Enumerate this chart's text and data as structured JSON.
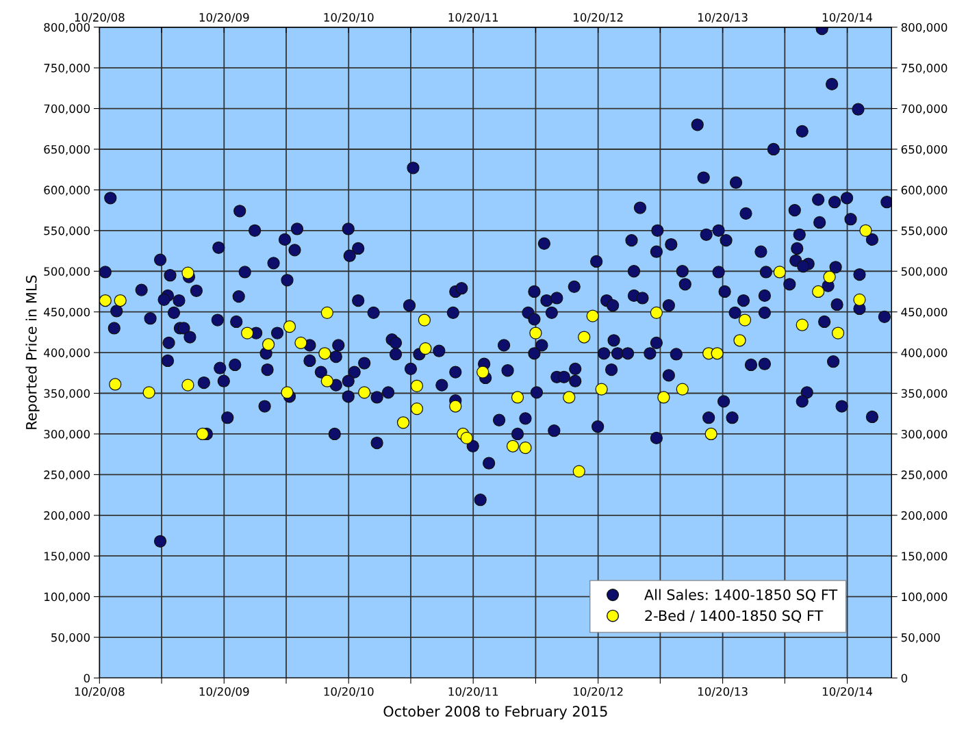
{
  "chart_data": {
    "type": "scatter",
    "xlabel": "October 2008 to February 2015",
    "ylabel": "Reported Price in MLS",
    "xlim": [
      "2008-10-20",
      "2015-02-27"
    ],
    "ylim": [
      0,
      800000
    ],
    "xticks": [
      {
        "value": "2008-10-20",
        "label": "10/20/08"
      },
      {
        "value": "2009-04-20",
        "label": null
      },
      {
        "value": "2009-10-20",
        "label": "10/20/09"
      },
      {
        "value": "2010-04-20",
        "label": null
      },
      {
        "value": "2010-10-20",
        "label": "10/20/10"
      },
      {
        "value": "2011-04-20",
        "label": null
      },
      {
        "value": "2011-10-20",
        "label": "10/20/11"
      },
      {
        "value": "2012-04-20",
        "label": null
      },
      {
        "value": "2012-10-20",
        "label": "10/20/12"
      },
      {
        "value": "2013-04-20",
        "label": null
      },
      {
        "value": "2013-10-20",
        "label": "10/20/13"
      },
      {
        "value": "2014-04-20",
        "label": null
      },
      {
        "value": "2014-10-20",
        "label": "10/20/14"
      }
    ],
    "x2lim": [
      "2008-10-20",
      "2015-02-27"
    ],
    "x2ticks": [
      {
        "value": "2008-10-20",
        "label": "10/20/08"
      },
      {
        "value": "2009-04-20",
        "label": null
      },
      {
        "value": "2009-10-20",
        "label": "10/20/09"
      },
      {
        "value": "2010-04-20",
        "label": null
      },
      {
        "value": "2010-10-20",
        "label": "10/20/10"
      },
      {
        "value": "2011-04-20",
        "label": null
      },
      {
        "value": "2011-10-20",
        "label": "10/20/11"
      },
      {
        "value": "2012-04-20",
        "label": null
      },
      {
        "value": "2012-10-20",
        "label": "10/20/12"
      },
      {
        "value": "2013-04-20",
        "label": null
      },
      {
        "value": "2013-10-20",
        "label": "10/20/13"
      },
      {
        "value": "2014-04-20",
        "label": null
      },
      {
        "value": "2014-10-20",
        "label": "10/20/14"
      }
    ],
    "yticks": [
      0,
      {
        "value": 50000,
        "label": "50,000"
      },
      {
        "value": 100000,
        "label": "100,000"
      },
      {
        "value": 150000,
        "label": "150,000"
      },
      {
        "value": 200000,
        "label": "200,000"
      },
      {
        "value": 250000,
        "label": "250,000"
      },
      {
        "value": 300000,
        "label": "300,000"
      },
      {
        "value": 350000,
        "label": "350,000"
      },
      {
        "value": 400000,
        "label": "400,000"
      },
      {
        "value": 450000,
        "label": "450,000"
      },
      {
        "value": 500000,
        "label": "500,000"
      },
      {
        "value": 550000,
        "label": "550,000"
      },
      {
        "value": 600000,
        "label": "600,000"
      },
      {
        "value": 650000,
        "label": "650,000"
      },
      {
        "value": 700000,
        "label": "700,000"
      },
      {
        "value": 750000,
        "label": "750,000"
      },
      {
        "value": 800000,
        "label": "800,000"
      }
    ],
    "y2lim": [
      0,
      800000
    ],
    "y2ticks": [
      0,
      {
        "value": 50000,
        "label": "50,000"
      },
      {
        "value": 100000,
        "label": "100,000"
      },
      {
        "value": 150000,
        "label": "150,000"
      },
      {
        "value": 200000,
        "label": "200,000"
      },
      {
        "value": 250000,
        "label": "250,000"
      },
      {
        "value": 300000,
        "label": "300,000"
      },
      {
        "value": 350000,
        "label": "350,000"
      },
      {
        "value": 400000,
        "label": "400,000"
      },
      {
        "value": 450000,
        "label": "450,000"
      },
      {
        "value": 500000,
        "label": "500,000"
      },
      {
        "value": 550000,
        "label": "550,000"
      },
      {
        "value": 600000,
        "label": "600,000"
      },
      {
        "value": 650000,
        "label": "650,000"
      },
      {
        "value": 700000,
        "label": "700,000"
      },
      {
        "value": 750000,
        "label": "750,000"
      },
      {
        "value": 800000,
        "label": "800,000"
      }
    ],
    "grid": true,
    "legend": "bottom right",
    "marker": "circle",
    "series": [
      {
        "name": "All Sales: 1400-1850 SQ FT",
        "color": "#0d0d6b",
        "x": [
          "2008-11-06",
          "2008-11-21",
          "2008-12-09",
          "2008-12-02",
          "2009-02-20",
          "2009-03-18",
          "2009-04-16",
          "2009-05-15",
          "2009-05-08",
          "2009-04-27",
          "2009-06-10",
          "2009-05-26",
          "2009-06-13",
          "2009-06-24",
          "2009-07-12",
          "2009-05-11",
          "2009-05-08",
          "2009-07-31",
          "2009-07-09",
          "2009-10-04",
          "2009-12-05",
          "2010-01-18",
          "2009-12-20",
          "2009-12-02",
          "2010-03-14",
          "2010-04-16",
          "2010-05-22",
          "2010-05-15",
          "2010-04-23",
          "2009-10-01",
          "2009-11-25",
          "2010-01-22",
          "2010-03-25",
          "2010-06-28",
          "2010-09-20",
          "2010-09-13",
          "2010-06-28",
          "2010-02-20",
          "2010-10-19",
          "2010-11-17",
          "2010-10-23",
          "2010-11-17",
          "2011-01-01",
          "2010-07-31",
          "2010-11-06",
          "2010-12-05",
          "2009-10-08",
          "2009-11-21",
          "2010-02-24",
          "2009-08-22",
          "2009-10-19",
          "2010-02-16",
          "2009-10-30",
          "2009-08-30",
          "2010-04-30",
          "2010-09-13",
          "2010-10-19",
          "2010-10-19",
          "2010-09-09",
          "2009-04-16",
          "2011-04-27",
          "2012-05-15",
          "2013-01-26",
          "2012-10-15",
          "2013-02-02",
          "2013-02-20",
          "2012-08-11",
          "2012-04-16",
          "2012-05-22",
          "2012-06-21",
          "2012-06-06",
          "2012-03-29",
          "2012-04-16",
          "2012-11-14",
          "2012-12-02",
          "2013-02-02",
          "2013-02-27",
          "2011-08-29",
          "2011-09-16",
          "2011-04-16",
          "2011-08-22",
          "2011-02-24",
          "2011-03-07",
          "2011-03-07",
          "2011-05-15",
          "2011-07-12",
          "2012-01-18",
          "2012-05-08",
          "2012-04-16",
          "2012-12-05",
          "2012-11-06",
          "2012-12-16",
          "2013-01-15",
          "2011-04-20",
          "2011-08-29",
          "2011-11-21",
          "2012-01-29",
          "2012-08-14",
          "2012-11-28",
          "2011-11-25",
          "2011-07-20",
          "2011-02-13",
          "2011-01-11",
          "2011-08-29",
          "2012-06-21",
          "2012-07-12",
          "2012-08-14",
          "2012-04-23",
          "2012-01-04",
          "2012-03-21",
          "2012-02-27",
          "2012-06-13",
          "2012-10-19",
          "2011-01-11",
          "2011-10-19",
          "2011-12-05",
          "2011-11-10",
          "2014-08-07",
          "2014-09-05",
          "2014-11-21",
          "2013-08-07",
          "2014-06-10",
          "2014-03-18",
          "2013-08-25",
          "2013-11-28",
          "2014-07-27",
          "2014-09-13",
          "2014-10-19",
          "2015-02-13",
          "2014-05-19",
          "2013-12-27",
          "2014-07-31",
          "2014-10-30",
          "2013-04-12",
          "2013-09-02",
          "2013-10-08",
          "2013-10-30",
          "2015-01-01",
          "2013-05-22",
          "2013-04-09",
          "2014-02-09",
          "2014-06-02",
          "2014-05-26",
          "2014-05-22",
          "2014-06-28",
          "2014-06-13",
          "2014-09-16",
          "2013-06-24",
          "2013-10-08",
          "2014-02-24",
          "2014-11-25",
          "2013-07-02",
          "2014-05-04",
          "2014-08-25",
          "2013-10-26",
          "2014-02-20",
          "2013-12-20",
          "2013-05-15",
          "2014-09-20",
          "2014-11-25",
          "2013-11-25",
          "2014-02-20",
          "2015-02-06",
          "2014-08-14",
          "2014-09-09",
          "2013-04-09",
          "2013-03-21",
          "2013-06-06",
          "2014-01-11",
          "2014-02-20",
          "2013-05-15",
          "2013-10-23",
          "2013-09-09",
          "2013-11-17",
          "2014-06-24",
          "2014-06-10",
          "2014-10-04",
          "2015-01-01",
          "2013-04-09"
        ],
        "values": [
          499000,
          590000,
          451000,
          430000,
          477000,
          442000,
          514000,
          495000,
          470000,
          465000,
          464000,
          449000,
          430000,
          430000,
          419000,
          412000,
          390000,
          476000,
          493000,
          529000,
          574000,
          550000,
          499000,
          469000,
          510000,
          539000,
          552000,
          526000,
          489000,
          440000,
          438000,
          424000,
          424000,
          409000,
          409000,
          395000,
          390000,
          399000,
          552000,
          528000,
          519000,
          464000,
          449000,
          376000,
          376000,
          387000,
          381000,
          385000,
          379000,
          363000,
          365000,
          334000,
          320000,
          300000,
          346000,
          360000,
          365000,
          346000,
          300000,
          168000,
          627000,
          534000,
          538000,
          512000,
          500000,
          578000,
          481000,
          475000,
          464000,
          467000,
          449000,
          449000,
          441000,
          464000,
          458000,
          470000,
          467000,
          475000,
          479000,
          458000,
          449000,
          416000,
          412000,
          398000,
          398000,
          402000,
          409000,
          409000,
          399000,
          415000,
          399000,
          399000,
          399000,
          380000,
          376000,
          386000,
          378000,
          380000,
          379000,
          369000,
          360000,
          351000,
          345000,
          341000,
          370000,
          370000,
          365000,
          351000,
          317000,
          319000,
          300000,
          304000,
          309000,
          289000,
          285000,
          264000,
          219000,
          798000,
          730000,
          699000,
          680000,
          672000,
          650000,
          615000,
          609000,
          588000,
          585000,
          590000,
          585000,
          575000,
          571000,
          560000,
          564000,
          550000,
          545000,
          550000,
          538000,
          539000,
          533000,
          524000,
          524000,
          545000,
          528000,
          513000,
          509000,
          506000,
          505000,
          500000,
          499000,
          499000,
          496000,
          484000,
          484000,
          482000,
          475000,
          470000,
          464000,
          458000,
          459000,
          454000,
          449000,
          449000,
          444000,
          438000,
          389000,
          412000,
          399000,
          398000,
          385000,
          386000,
          372000,
          340000,
          320000,
          320000,
          351000,
          340000,
          334000,
          321000,
          295000
        ]
      },
      {
        "name": "2-Bed / 1400-1850 SQ FT",
        "color": "#ffff00",
        "x": [
          "2008-11-06",
          "2008-12-20",
          "2009-07-06",
          "2010-08-18",
          "2010-04-30",
          "2009-12-27",
          "2010-02-27",
          "2010-06-02",
          "2010-08-11",
          "2008-12-05",
          "2009-03-14",
          "2009-07-06",
          "2010-12-05",
          "2009-08-18",
          "2010-04-23",
          "2010-08-18",
          "2011-05-30",
          "2011-06-02",
          "2012-04-20",
          "2012-10-04",
          "2012-09-09",
          "2011-11-17",
          "2011-05-08",
          "2011-05-08",
          "2011-03-29",
          "2011-08-29",
          "2011-09-20",
          "2011-10-01",
          "2012-02-27",
          "2012-02-13",
          "2012-03-21",
          "2012-07-27",
          "2012-10-30",
          "2012-08-25",
          "2014-12-13",
          "2014-04-05",
          "2014-08-29",
          "2014-07-27",
          "2014-11-25",
          "2013-04-09",
          "2013-12-24",
          "2014-06-10",
          "2014-09-23",
          "2013-12-09",
          "2013-09-09",
          "2013-10-04",
          "2013-06-24",
          "2013-04-30",
          "2013-09-16"
        ],
        "values": [
          464000,
          464000,
          498000,
          449000,
          432000,
          424000,
          410000,
          412000,
          399000,
          361000,
          351000,
          360000,
          351000,
          300000,
          351000,
          365000,
          440000,
          405000,
          424000,
          445000,
          419000,
          376000,
          359000,
          331000,
          314000,
          334000,
          300000,
          295000,
          345000,
          285000,
          283000,
          345000,
          355000,
          254000,
          550000,
          499000,
          493000,
          475000,
          465000,
          449000,
          440000,
          434000,
          424000,
          415000,
          399000,
          399000,
          355000,
          345000,
          300000
        ]
      }
    ]
  }
}
